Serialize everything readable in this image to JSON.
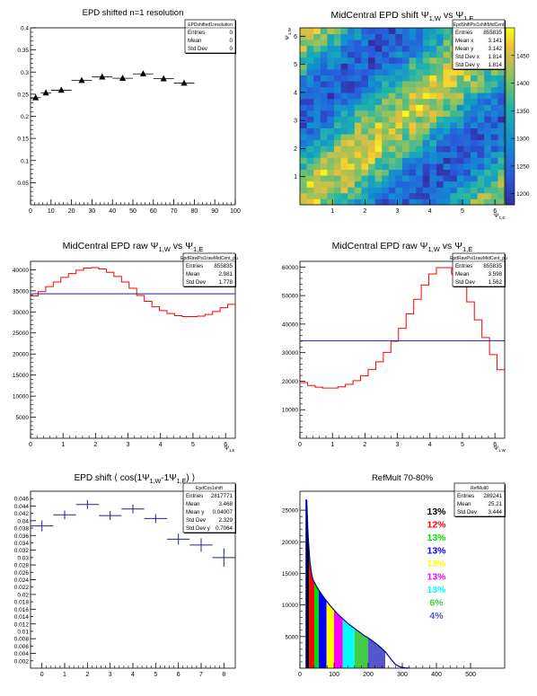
{
  "chart_data": [
    {
      "id": "p1",
      "type": "scatter",
      "title": "EPD shifted n=1 resolution",
      "xlim": [
        0,
        100
      ],
      "ylim": [
        0,
        0.4
      ],
      "xticks": [
        "0",
        "10",
        "20",
        "30",
        "40",
        "50",
        "60",
        "70",
        "80",
        "90",
        "100"
      ],
      "yticks": [
        "0.05",
        "0.1",
        "0.15",
        "0.2",
        "0.25",
        "0.3",
        "0.35",
        "0.4"
      ],
      "marker": "triangle",
      "series": [
        {
          "x": [
            2.5,
            7.5,
            15,
            25,
            35,
            45,
            55,
            65,
            75
          ],
          "y": [
            0.242,
            0.253,
            0.259,
            0.281,
            0.289,
            0.286,
            0.296,
            0.285,
            0.275
          ],
          "xerr": [
            2.5,
            2.5,
            5,
            5,
            5,
            5,
            5,
            5,
            5
          ]
        }
      ],
      "stats": {
        "name": "EPDshifted1resolution",
        "rows": [
          [
            "Entries",
            "0"
          ],
          [
            "Mean",
            "0"
          ],
          [
            "Std Dev",
            "0"
          ]
        ]
      }
    },
    {
      "id": "p2",
      "type": "heatmap",
      "title_parts": [
        "MidCentral EPD shift Ψ",
        "1,W",
        " vs Ψ",
        "1,E"
      ],
      "xlim": [
        0,
        6.3
      ],
      "ylim": [
        0,
        6.3
      ],
      "xticks": [
        "1",
        "2",
        "3",
        "4",
        "5",
        "6"
      ],
      "yticks": [
        "1",
        "2",
        "3",
        "4",
        "5",
        "6"
      ],
      "xlabel_parts": [
        "Ψ",
        "1,E"
      ],
      "ylabel_parts": [
        "Ψ",
        "1,W"
      ],
      "zlim": [
        1180,
        1500
      ],
      "zticks": [
        "1200",
        "1250",
        "1300",
        "1350",
        "1400",
        "1450"
      ],
      "stats": {
        "name": "EpdShiftPsi1shiftMidCent",
        "rows": [
          [
            "Entries",
            "855835"
          ],
          [
            "Mean x",
            "3.141"
          ],
          [
            "Mean y",
            "3.142"
          ],
          [
            "Std Dev x",
            "1.814"
          ],
          [
            "Std Dev y",
            "1.814"
          ]
        ]
      }
    },
    {
      "id": "p3",
      "type": "line",
      "title_parts": [
        "MidCentral EPD raw Ψ",
        "1,W",
        " vs Ψ",
        "1,E"
      ],
      "xlim": [
        0,
        6.3
      ],
      "ylim": [
        0,
        42000
      ],
      "xticks": [
        "0",
        "1",
        "2",
        "3",
        "4",
        "5",
        "6"
      ],
      "yticks": [
        "5000",
        "10000",
        "15000",
        "20000",
        "25000",
        "30000",
        "35000",
        "40000"
      ],
      "xlabel_parts": [
        "Ψ",
        "1,E"
      ],
      "series": [
        {
          "kind": "hist",
          "color": "#ff0000",
          "values": [
            33800,
            34800,
            36000,
            37100,
            38200,
            39100,
            39900,
            40400,
            40500,
            40200,
            39400,
            38400,
            37100,
            35600,
            33900,
            32500,
            31200,
            30300,
            29600,
            29100,
            28900,
            28900,
            29000,
            29400,
            30100,
            31000,
            31800
          ]
        },
        {
          "kind": "flat",
          "color": "#2222aa",
          "value": 34300
        }
      ],
      "stats": {
        "name": "EpdRawPsi1rawMidCent_pu",
        "rows": [
          [
            "Entries",
            "855835"
          ],
          [
            "Mean",
            "2.981"
          ],
          [
            "Std Dev",
            "1.778"
          ]
        ]
      }
    },
    {
      "id": "p4",
      "type": "line",
      "title_parts": [
        "MidCentral EPD raw Ψ",
        "1,W",
        " vs Ψ",
        "1,E"
      ],
      "xlim": [
        0,
        6.3
      ],
      "ylim": [
        0,
        62000
      ],
      "xticks": [
        "0",
        "1",
        "2",
        "3",
        "4",
        "5",
        "6"
      ],
      "yticks": [
        "10000",
        "20000",
        "30000",
        "40000",
        "50000",
        "60000"
      ],
      "xlabel_parts": [
        "Ψ",
        "1,W"
      ],
      "series": [
        {
          "kind": "hist",
          "color": "#ff0000",
          "values": [
            19500,
            18500,
            17900,
            17600,
            17600,
            18000,
            18900,
            20200,
            21900,
            24100,
            26800,
            30100,
            34000,
            38500,
            43600,
            48700,
            53700,
            57600,
            59800,
            59800,
            57500,
            53300,
            47800,
            41500,
            35300,
            29300,
            24000
          ]
        },
        {
          "kind": "flat",
          "color": "#2222aa",
          "value": 34200
        }
      ],
      "stats": {
        "name": "EpdRawPsi1rawMidCent_pu",
        "rows": [
          [
            "Entries",
            "855835"
          ],
          [
            "Mean",
            "3.598"
          ],
          [
            "Std Dev",
            "1.562"
          ]
        ]
      }
    },
    {
      "id": "p5",
      "type": "scatter",
      "title_parts": [
        "EPD shift ⟨ cos(1Ψ",
        "1,W",
        "-1Ψ",
        "1,E",
        ") ⟩"
      ],
      "xlim": [
        -0.5,
        8.5
      ],
      "ylim": [
        0,
        0.048
      ],
      "xticks": [
        "0",
        "1",
        "2",
        "3",
        "4",
        "5",
        "6",
        "7",
        "8"
      ],
      "yticks": [
        "0.002",
        "0.004",
        "0.006",
        "0.008",
        "0.01",
        "0.012",
        "0.014",
        "0.016",
        "0.018",
        "0.02",
        "0.022",
        "0.024",
        "0.026",
        "0.028",
        "0.03",
        "0.032",
        "0.034",
        "0.036",
        "0.038",
        "0.04",
        "0.042",
        "0.044",
        "0.046"
      ],
      "yticklabels_every": 2,
      "series": [
        {
          "x": [
            0,
            1,
            2,
            3,
            4,
            5,
            6,
            7,
            8
          ],
          "y": [
            0.0386,
            0.0416,
            0.0444,
            0.0414,
            0.0432,
            0.0406,
            0.035,
            0.0334,
            0.03
          ],
          "yerr": [
            0.0015,
            0.0012,
            0.0012,
            0.0012,
            0.0012,
            0.0012,
            0.0015,
            0.0018,
            0.0025
          ],
          "color": "#22228a"
        }
      ],
      "stats": {
        "name": "EpdCos1shift",
        "rows": [
          [
            "Entries",
            "2817771"
          ],
          [
            "Mean",
            "3.468"
          ],
          [
            "Mean y",
            "0.04007"
          ],
          [
            "Std Dev",
            "2.329"
          ],
          [
            "Std Dev y",
            "0.7064"
          ]
        ]
      }
    },
    {
      "id": "p6",
      "type": "area",
      "title": "RefMult 70-80%",
      "xlim": [
        0,
        600
      ],
      "ylim": [
        0,
        28000
      ],
      "xticks": [
        "0",
        "100",
        "200",
        "300",
        "400",
        "500"
      ],
      "yticks": [
        "5000",
        "10000",
        "15000",
        "20000",
        "25000"
      ],
      "bin_x": [
        18,
        20,
        22,
        24,
        26,
        28,
        30,
        32,
        34,
        36,
        38,
        40,
        45,
        50,
        55,
        60,
        70,
        80,
        90,
        100,
        110,
        120,
        130,
        140,
        150,
        160,
        170,
        180,
        190,
        200,
        210,
        220,
        230,
        240,
        250,
        260,
        270,
        280,
        290,
        300,
        310,
        320
      ],
      "bin_y": [
        26700,
        26500,
        23500,
        21000,
        19300,
        17700,
        16600,
        15700,
        15000,
        14500,
        14100,
        13800,
        13300,
        12800,
        12400,
        12000,
        11200,
        10500,
        9800,
        9200,
        8600,
        8100,
        7600,
        7100,
        6700,
        6300,
        5900,
        5500,
        5100,
        4800,
        4400,
        4000,
        3600,
        3100,
        2600,
        1900,
        1200,
        600,
        280,
        120,
        40,
        10
      ],
      "bands": [
        {
          "from": 18,
          "to": 27,
          "color": "#000000"
        },
        {
          "from": 27,
          "to": 42,
          "color": "#ff0000"
        },
        {
          "from": 42,
          "to": 55,
          "color": "#00dd00"
        },
        {
          "from": 55,
          "to": 78,
          "color": "#0000ff"
        },
        {
          "from": 78,
          "to": 100,
          "color": "#ffff00"
        },
        {
          "from": 100,
          "to": 125,
          "color": "#ff00ff"
        },
        {
          "from": 125,
          "to": 160,
          "color": "#00ffff"
        },
        {
          "from": 160,
          "to": 200,
          "color": "#44cc44"
        },
        {
          "from": 200,
          "to": 250,
          "color": "#5555cc"
        }
      ],
      "legend": [
        {
          "label": "13%",
          "color": "#000000"
        },
        {
          "label": "12%",
          "color": "#ff0000"
        },
        {
          "label": "13%",
          "color": "#00dd00"
        },
        {
          "label": "13%",
          "color": "#0000ff"
        },
        {
          "label": "13%",
          "color": "#ffff00"
        },
        {
          "label": "13%",
          "color": "#ff00ff"
        },
        {
          "label": "13%",
          "color": "#00ffff"
        },
        {
          "label": "6%",
          "color": "#44cc44"
        },
        {
          "label": "4%",
          "color": "#5555cc"
        }
      ],
      "stats": {
        "name": "RefMult0",
        "rows": [
          [
            "Entries",
            "289241"
          ],
          [
            "Mean",
            "25.21"
          ],
          [
            "Std Dev",
            "3.444"
          ]
        ]
      }
    }
  ]
}
